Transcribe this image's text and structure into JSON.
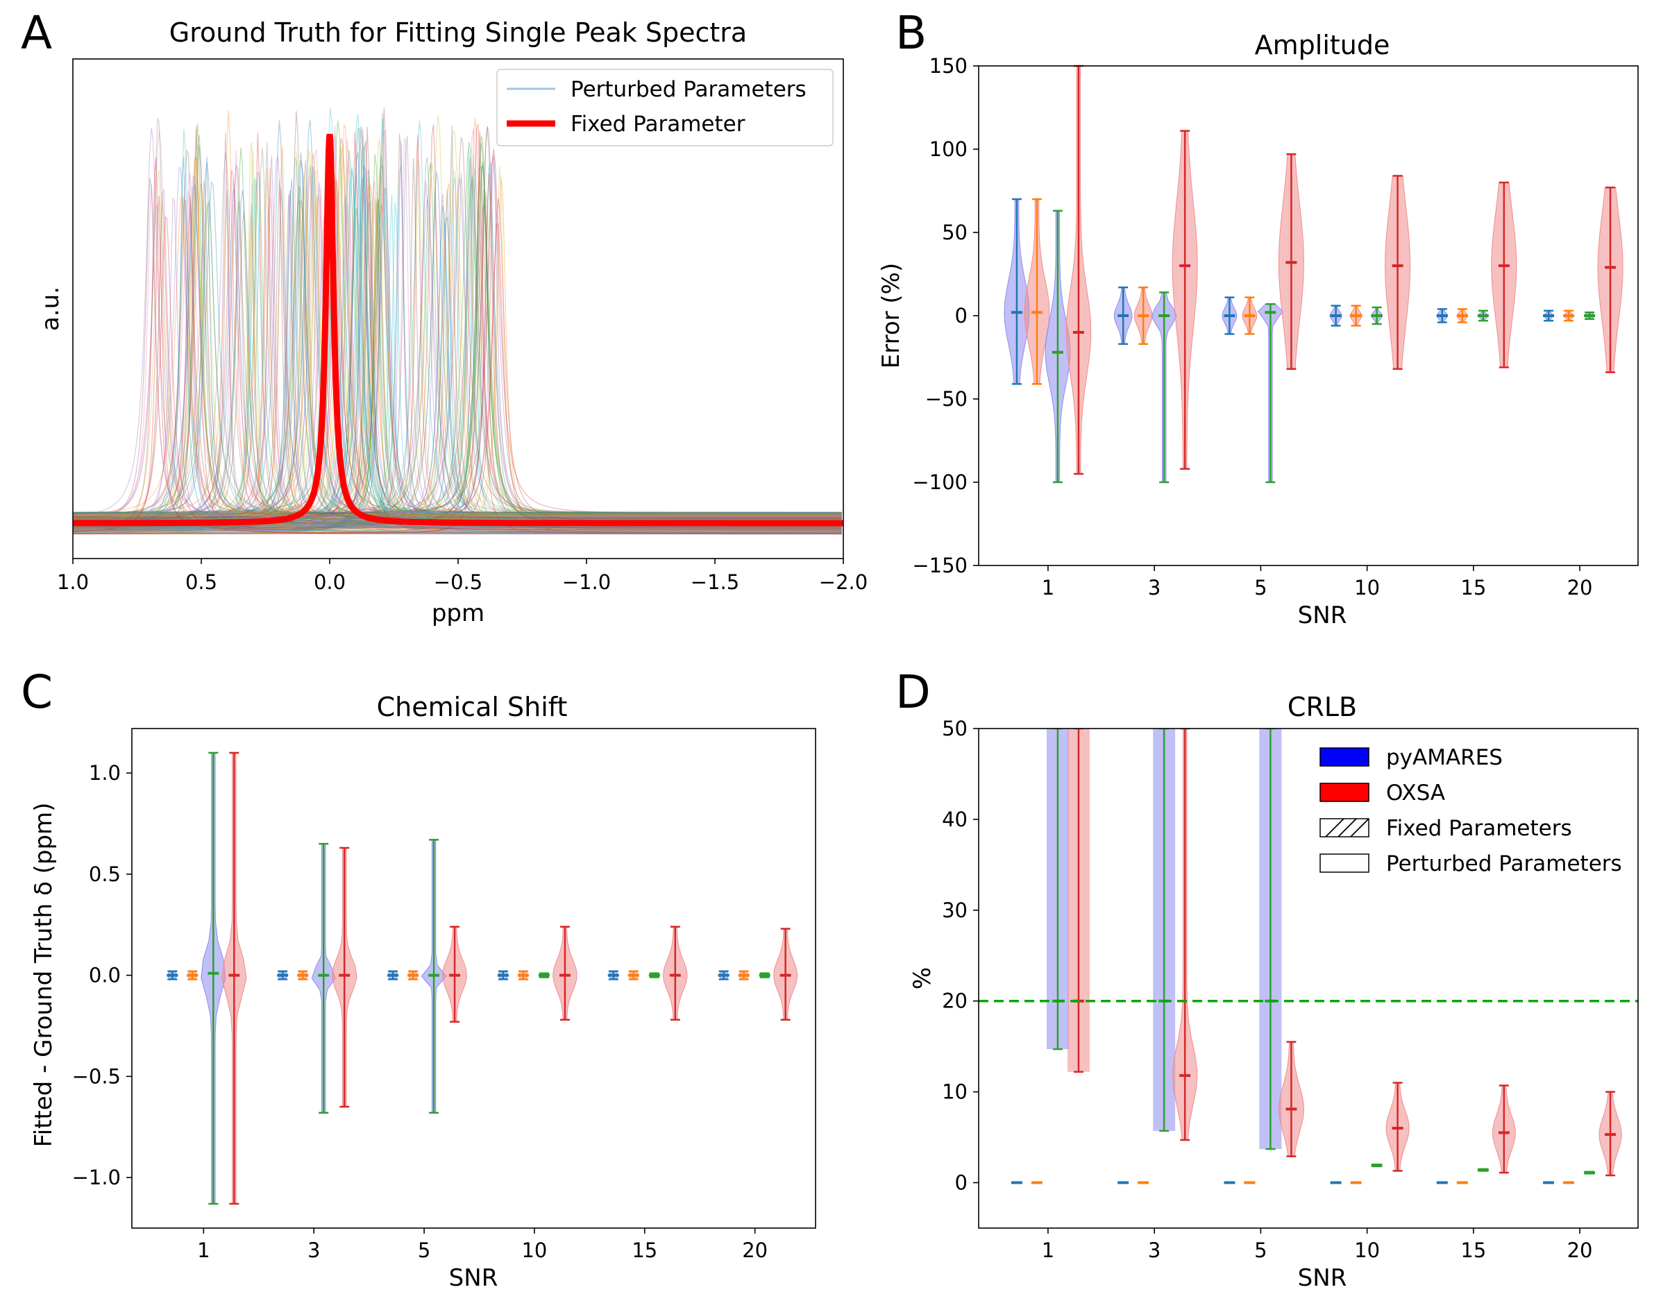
{
  "colors": {
    "blue": "#1f77b4",
    "orange": "#ff7f0e",
    "green": "#2ca02c",
    "red": "#d62728",
    "violin_blue": "#8c8cf0",
    "violin_red": "#f08c8c",
    "legend_blue": "#0000ff",
    "legend_red": "#ff0000",
    "fixed_line": "#ff0000",
    "threshold": "#00aa00"
  },
  "chart_data": [
    {
      "panel": "A",
      "type": "line",
      "title": "Ground Truth for Fitting Single Peak Spectra",
      "xlabel": "ppm",
      "ylabel": "a.u.",
      "xlim": [
        1.0,
        -2.0
      ],
      "x_ticks": [
        "1.0",
        "0.5",
        "0.0",
        "−0.5",
        "−1.0",
        "−1.5",
        "−2.0"
      ],
      "x_tick_values": [
        1.0,
        0.5,
        0.0,
        -0.5,
        -1.0,
        -1.5,
        -2.0
      ],
      "ylim": [
        -0.08,
        1.05
      ],
      "legend": {
        "position": "upper right",
        "entries": [
          "Perturbed Parameters",
          "Fixed Parameter"
        ]
      },
      "fixed_peak": {
        "center_ppm": 0.0,
        "width_ppm": 0.018,
        "height": 0.88
      },
      "perturbed_band": {
        "min_ppm": 0.7,
        "max_ppm": -0.67,
        "height_range": [
          0.7,
          0.93
        ]
      },
      "series": [
        {
          "name": "Perturbed Parameters",
          "note_count": 220
        },
        {
          "name": "Fixed Parameter"
        }
      ]
    },
    {
      "panel": "B",
      "type": "violin",
      "title": "Amplitude",
      "xlabel": "SNR",
      "ylabel": "Error (%)",
      "categories": [
        "1",
        "3",
        "5",
        "10",
        "15",
        "20"
      ],
      "ylim": [
        -150,
        150
      ],
      "y_ticks": [
        150,
        100,
        50,
        0,
        -50,
        -100,
        -150
      ],
      "y_tick_labels": [
        "150",
        "100",
        "50",
        "0",
        "−50",
        "−100",
        "−150"
      ],
      "series": [
        {
          "color": "blue",
          "violin": "blue",
          "min": [
            -41,
            -17,
            -11,
            -6,
            -4,
            -3
          ],
          "max": [
            70,
            17,
            11,
            6,
            4,
            3
          ],
          "mid": [
            2,
            0,
            0,
            0,
            0,
            0
          ],
          "spread": [
            30,
            10,
            7,
            4,
            3,
            2
          ]
        },
        {
          "color": "orange",
          "violin": "red",
          "min": [
            -41,
            -17,
            -11,
            -6,
            -4,
            -3
          ],
          "max": [
            70,
            17,
            11,
            6,
            4,
            3
          ],
          "mid": [
            2,
            0,
            0,
            0,
            0,
            0
          ],
          "spread": [
            30,
            10,
            7,
            4,
            3,
            2
          ]
        },
        {
          "color": "green",
          "violin": "blue",
          "min": [
            -100,
            -100,
            -100,
            -5,
            -3,
            -2
          ],
          "max": [
            63,
            14,
            7,
            5,
            3,
            2
          ],
          "mid": [
            -22,
            0,
            2,
            0,
            0,
            0
          ],
          "spread": [
            30,
            8,
            5,
            3,
            2,
            2
          ]
        },
        {
          "color": "red",
          "violin": "red",
          "min": [
            -95,
            -92,
            -32,
            -32,
            -31,
            -34
          ],
          "max": [
            150,
            111,
            97,
            84,
            80,
            77
          ],
          "mid": [
            -10,
            30,
            32,
            30,
            30,
            29
          ],
          "spread": [
            40,
            60,
            55,
            55,
            50,
            50
          ]
        }
      ]
    },
    {
      "panel": "C",
      "type": "violin",
      "title": "Chemical Shift",
      "xlabel": "SNR",
      "ylabel": "Fitted - Ground Truth δ (ppm)",
      "categories": [
        "1",
        "3",
        "5",
        "10",
        "15",
        "20"
      ],
      "ylim": [
        -1.25,
        1.22
      ],
      "y_ticks": [
        1.0,
        0.5,
        0.0,
        -0.5,
        -1.0
      ],
      "y_tick_labels": [
        "1.0",
        "0.5",
        "0.0",
        "−0.5",
        "−1.0"
      ],
      "series": [
        {
          "color": "blue",
          "violin": "blue",
          "min": [
            -0.02,
            -0.02,
            -0.02,
            -0.02,
            -0.02,
            -0.02
          ],
          "max": [
            0.02,
            0.02,
            0.02,
            0.02,
            0.02,
            0.02
          ],
          "mid": [
            0,
            0,
            0,
            0,
            0,
            0
          ],
          "spread": [
            0.02,
            0.02,
            0.02,
            0.02,
            0.02,
            0.02
          ]
        },
        {
          "color": "orange",
          "violin": "red",
          "min": [
            -0.02,
            -0.02,
            -0.02,
            -0.02,
            -0.02,
            -0.02
          ],
          "max": [
            0.02,
            0.02,
            0.02,
            0.02,
            0.02,
            0.02
          ],
          "mid": [
            0,
            0,
            0,
            0,
            0,
            0
          ],
          "spread": [
            0.02,
            0.02,
            0.02,
            0.02,
            0.02,
            0.02
          ]
        },
        {
          "color": "green",
          "violin": "blue",
          "min": [
            -1.13,
            -0.68,
            -0.68,
            -0.01,
            -0.01,
            -0.01
          ],
          "max": [
            1.1,
            0.65,
            0.67,
            0.01,
            0.01,
            0.01
          ],
          "mid": [
            0.01,
            0,
            0,
            0,
            0,
            0
          ],
          "spread": [
            0.15,
            0.06,
            0.04,
            0.01,
            0.01,
            0.01
          ]
        },
        {
          "color": "red",
          "violin": "red",
          "min": [
            -1.13,
            -0.65,
            -0.23,
            -0.22,
            -0.22,
            -0.22
          ],
          "max": [
            1.1,
            0.63,
            0.24,
            0.24,
            0.24,
            0.23
          ],
          "mid": [
            0,
            0,
            0,
            0,
            0,
            0
          ],
          "spread": [
            0.15,
            0.12,
            0.12,
            0.12,
            0.12,
            0.12
          ]
        }
      ]
    },
    {
      "panel": "D",
      "type": "violin",
      "title": "CRLB",
      "xlabel": "SNR",
      "ylabel": "%",
      "categories": [
        "1",
        "3",
        "5",
        "10",
        "15",
        "20"
      ],
      "ylim": [
        -5,
        50
      ],
      "y_ticks": [
        50,
        40,
        30,
        20,
        10,
        0
      ],
      "y_tick_labels": [
        "50",
        "40",
        "30",
        "20",
        "10",
        "0"
      ],
      "threshold": 20,
      "legend": {
        "position": "upper right",
        "entries": [
          "pyAMARES",
          "OXSA",
          "Fixed Parameters",
          "Perturbed Parameters"
        ]
      },
      "series": [
        {
          "color": "blue",
          "violin": "blue",
          "min": [
            0,
            0,
            0,
            0,
            0,
            0
          ],
          "max": [
            0,
            0,
            0,
            0,
            0,
            0
          ],
          "mid": [
            0,
            0,
            0,
            0,
            0,
            0
          ],
          "spread": [
            0,
            0,
            0,
            0,
            0,
            0
          ]
        },
        {
          "color": "orange",
          "violin": "red",
          "min": [
            0,
            0,
            0,
            0,
            0,
            0
          ],
          "max": [
            0,
            0,
            0,
            0,
            0,
            0
          ],
          "mid": [
            0,
            0,
            0,
            0,
            0,
            0
          ],
          "spread": [
            0,
            0,
            0,
            0,
            0,
            0
          ]
        },
        {
          "color": "green",
          "violin": "blue",
          "tall": true,
          "min": [
            14.7,
            5.7,
            3.7,
            1.8,
            1.3,
            1.0
          ],
          "max": [
            50,
            50,
            50,
            2.0,
            1.5,
            1.2
          ],
          "mid": [
            20,
            20,
            20,
            1.9,
            1.4,
            1.1
          ],
          "spread": [
            0,
            0,
            0,
            0.1,
            0.1,
            0.1
          ]
        },
        {
          "color": "red",
          "violin": "red",
          "tall": true,
          "min": [
            12.2,
            4.7,
            2.9,
            1.3,
            1.1,
            0.8
          ],
          "max": [
            50,
            50,
            15.5,
            11.0,
            10.7,
            10.0
          ],
          "mid": [
            20,
            11.8,
            8.1,
            6.0,
            5.5,
            5.3
          ],
          "spread": [
            0,
            5,
            4,
            3,
            3,
            3
          ]
        }
      ]
    }
  ]
}
